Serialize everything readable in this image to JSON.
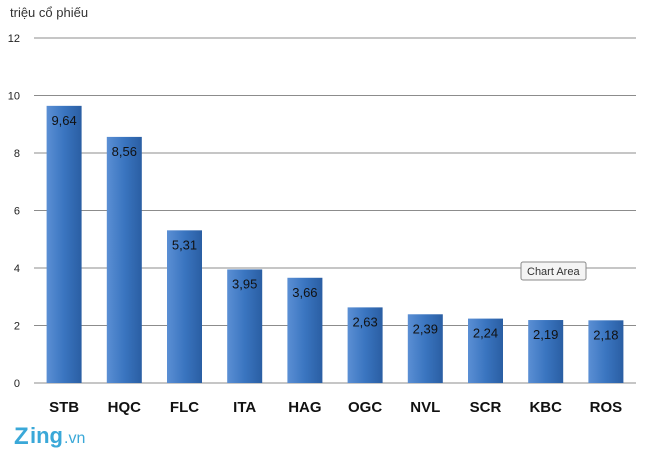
{
  "chart_data": {
    "type": "bar",
    "unit_label": "triệu cổ phiếu",
    "categories": [
      "STB",
      "HQC",
      "FLC",
      "ITA",
      "HAG",
      "OGC",
      "NVL",
      "SCR",
      "KBC",
      "ROS"
    ],
    "values": [
      9.64,
      8.56,
      5.31,
      3.95,
      3.66,
      2.63,
      2.39,
      2.24,
      2.19,
      2.18
    ],
    "value_labels": [
      "9,64",
      "8,56",
      "5,31",
      "3,95",
      "3,66",
      "2,63",
      "2,39",
      "2,24",
      "2,19",
      "2,18"
    ],
    "ylim": [
      0,
      12
    ],
    "yticks": [
      0,
      2,
      4,
      6,
      8,
      10,
      12
    ],
    "grid": true,
    "legend": "none",
    "bar_color": "#3a75c0"
  },
  "tooltip": "Chart Area",
  "logo": {
    "z": "Z",
    "ing": "ing",
    "vn": ".vn"
  }
}
